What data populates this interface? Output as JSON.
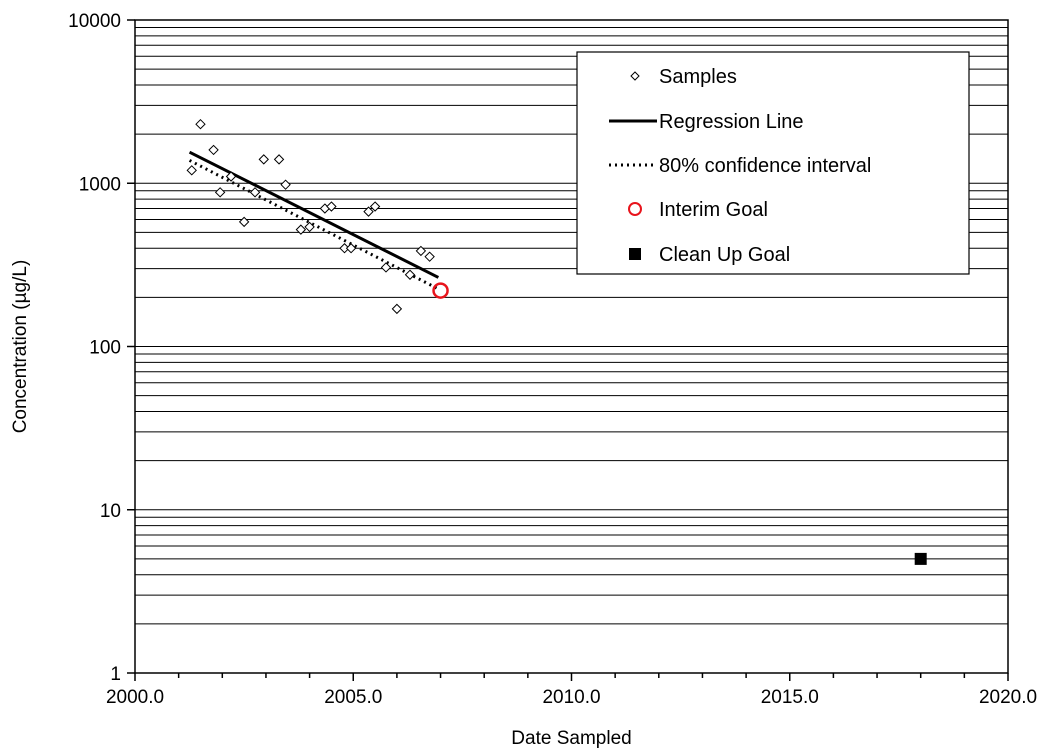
{
  "chart_data": {
    "type": "scatter",
    "xlabel": "Date Sampled",
    "ylabel": "Concentration (µg/L)",
    "xlim": [
      2000,
      2020
    ],
    "ylim": [
      1,
      10000
    ],
    "y_scale": "log",
    "grid": true,
    "legend_position": "top-right",
    "x_ticks": [
      2000,
      2005,
      2010,
      2015,
      2020
    ],
    "x_tick_labels": [
      "2000.0",
      "2005.0",
      "2010.0",
      "2015.0",
      "2020.0"
    ],
    "y_ticks": [
      1,
      10,
      100,
      1000,
      10000
    ],
    "y_tick_labels": [
      "1",
      "10",
      "100",
      "1000",
      "10000"
    ],
    "legend": [
      {
        "label": "Samples",
        "symbol": "diamond-open"
      },
      {
        "label": "Regression Line",
        "symbol": "solid-line"
      },
      {
        "label": "80% confidence interval",
        "symbol": "dotted-line"
      },
      {
        "label": "Interim Goal",
        "symbol": "circle-open"
      },
      {
        "label": "Clean Up Goal",
        "symbol": "square-filled"
      }
    ],
    "series": [
      {
        "name": "Samples",
        "color": "#000000",
        "marker": "diamond-open",
        "points": [
          {
            "x": 2001.3,
            "y": 1200
          },
          {
            "x": 2001.5,
            "y": 2300
          },
          {
            "x": 2001.8,
            "y": 1600
          },
          {
            "x": 2001.95,
            "y": 880
          },
          {
            "x": 2002.2,
            "y": 1100
          },
          {
            "x": 2002.5,
            "y": 580
          },
          {
            "x": 2002.75,
            "y": 880
          },
          {
            "x": 2002.95,
            "y": 1400
          },
          {
            "x": 2003.3,
            "y": 1400
          },
          {
            "x": 2003.45,
            "y": 980
          },
          {
            "x": 2003.8,
            "y": 520
          },
          {
            "x": 2004.0,
            "y": 540
          },
          {
            "x": 2004.35,
            "y": 700
          },
          {
            "x": 2004.5,
            "y": 720
          },
          {
            "x": 2004.8,
            "y": 400
          },
          {
            "x": 2004.95,
            "y": 400
          },
          {
            "x": 2005.35,
            "y": 670
          },
          {
            "x": 2005.5,
            "y": 720
          },
          {
            "x": 2005.75,
            "y": 305
          },
          {
            "x": 2006.0,
            "y": 170
          },
          {
            "x": 2006.3,
            "y": 275
          },
          {
            "x": 2006.55,
            "y": 385
          },
          {
            "x": 2006.75,
            "y": 355
          }
        ]
      },
      {
        "name": "Regression Line",
        "color": "#000000",
        "line": "solid",
        "points": [
          {
            "x": 2001.25,
            "y": 1550
          },
          {
            "x": 2006.95,
            "y": 265
          }
        ]
      },
      {
        "name": "80% confidence interval",
        "color": "#000000",
        "line": "dotted",
        "points": [
          {
            "x": 2001.25,
            "y": 1380
          },
          {
            "x": 2006.95,
            "y": 225
          }
        ]
      },
      {
        "name": "Interim Goal",
        "color": "#e8141c",
        "marker": "circle-open",
        "points": [
          {
            "x": 2007.0,
            "y": 220
          }
        ]
      },
      {
        "name": "Clean Up Goal",
        "color": "#000000",
        "marker": "square-filled",
        "points": [
          {
            "x": 2018.0,
            "y": 5
          }
        ]
      }
    ]
  }
}
